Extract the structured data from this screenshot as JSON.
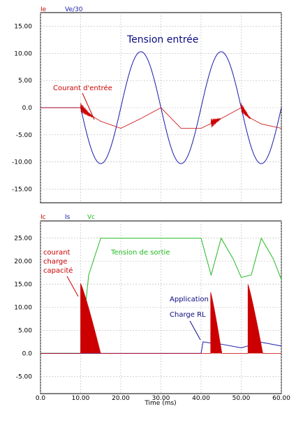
{
  "colors": {
    "red": "#cc0000",
    "blue": "#1a1aaa",
    "green": "#22bb22",
    "grid": "#b8b8b8",
    "frame": "#000000",
    "annotation_blue": "#0a0a80"
  },
  "chart_data": [
    {
      "type": "line",
      "legend": [
        {
          "name": "Ie",
          "color": "#cc0000"
        },
        {
          "name": "Ve/30",
          "color": "#1a1aaa"
        }
      ],
      "xlim": [
        0,
        60
      ],
      "ylim": [
        -17.5,
        17.5
      ],
      "xticks": [
        0,
        10,
        20,
        30,
        40,
        50,
        60
      ],
      "yticks": [
        "15.00",
        "10.00",
        "5.00",
        "0.0",
        "-5.00",
        "-10.00",
        "-15.00"
      ],
      "grid": true,
      "annotations": [
        "Tension entrée",
        "Courant d'entrée"
      ],
      "series": [
        {
          "name": "Ve/30",
          "x": [
            0,
            10,
            15,
            20,
            25,
            30,
            35,
            40,
            45,
            50,
            55,
            60
          ],
          "y": [
            0,
            0,
            -10.3,
            0,
            10.3,
            0,
            -10.3,
            0,
            10.3,
            0,
            -10.3,
            0
          ]
        },
        {
          "name": "Ie",
          "x": [
            0,
            10,
            12,
            15,
            20,
            25,
            30,
            35,
            40,
            45,
            50,
            52,
            55,
            60
          ],
          "y": [
            0,
            0,
            -1.2,
            -2.5,
            -3.8,
            -2.0,
            0,
            -3.8,
            -3.8,
            -2.0,
            0,
            -1.8,
            -3.0,
            -3.8
          ],
          "oscillation_intervals": [
            [
              10,
              13.5
            ],
            [
              42.5,
              45
            ],
            [
              50,
              52.5
            ]
          ]
        }
      ]
    },
    {
      "type": "line",
      "legend": [
        {
          "name": "Ic",
          "color": "#cc0000"
        },
        {
          "name": "Is",
          "color": "#1a1aaa"
        },
        {
          "name": "Vc",
          "color": "#22bb22"
        }
      ],
      "xlabel": "Time (ms)",
      "xlim": [
        0,
        60
      ],
      "xticks": [
        "0.0",
        "10.00",
        "20.00",
        "30.00",
        "40.00",
        "50.00",
        "60.00"
      ],
      "xtick_values": [
        0,
        10,
        20,
        30,
        40,
        50,
        60
      ],
      "ylim": [
        -8.75,
        28.75
      ],
      "yticks": [
        "25.00",
        "20.00",
        "15.00",
        "10.00",
        "5.00",
        "0.0",
        "-5.00"
      ],
      "ytick_values": [
        25,
        20,
        15,
        10,
        5,
        0,
        -5
      ],
      "grid": true,
      "annotations": [
        "courant",
        "charge",
        "capacité",
        "Tension de sortie",
        "Application",
        "Charge RL"
      ],
      "series": [
        {
          "name": "Vc",
          "x": [
            0,
            10,
            12,
            15,
            40,
            42.5,
            45,
            48,
            50,
            52.5,
            55,
            58,
            60
          ],
          "y": [
            0,
            0,
            17,
            25,
            25,
            17,
            25,
            20.5,
            16.5,
            17,
            25,
            20.5,
            16
          ]
        },
        {
          "name": "Is",
          "x": [
            0,
            40,
            40.5,
            42,
            45,
            50,
            52,
            55,
            60
          ],
          "y": [
            0,
            0,
            2.5,
            2.3,
            2.0,
            1.2,
            1.7,
            2.4,
            1.6
          ]
        },
        {
          "name": "Ic",
          "pulses": [
            {
              "start": 10,
              "peak": 15.2,
              "end": 15
            },
            {
              "start": 42.4,
              "peak": 13.3,
              "end": 45.2
            },
            {
              "start": 51.7,
              "peak": 15.0,
              "end": 55.4
            }
          ]
        }
      ]
    }
  ]
}
